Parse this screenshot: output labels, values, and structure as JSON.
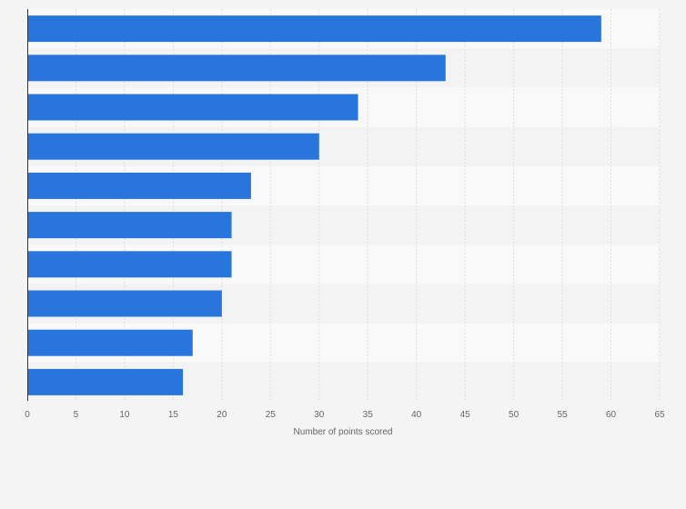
{
  "chart_data": {
    "type": "bar",
    "orientation": "horizontal",
    "categories": [
      "",
      "",
      "",
      "",
      "",
      "",
      "",
      "",
      "",
      ""
    ],
    "values": [
      59,
      43,
      34,
      30,
      23,
      21,
      21,
      20,
      17,
      16
    ],
    "xlabel": "Number of points scored",
    "ylabel": "",
    "xlim": [
      0,
      65
    ],
    "xticks": [
      "0",
      "5",
      "10",
      "15",
      "20",
      "25",
      "30",
      "35",
      "40",
      "45",
      "50",
      "55",
      "60",
      "65"
    ],
    "grid": true,
    "legend": "none",
    "colors": {
      "bar": "#2876dd",
      "background": "#f4f4f4",
      "band_light": "#f9f9f9",
      "band_dark": "#f3f3f3",
      "grid": "#dddddd",
      "axis": "#333333",
      "text": "#666666"
    }
  }
}
